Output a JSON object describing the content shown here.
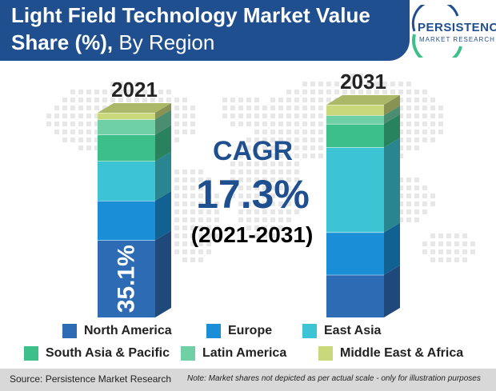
{
  "header": {
    "title_bold": "Light Field Technology Market Value",
    "title_bold_2": "Share (%),",
    "title_regular": " By Region"
  },
  "logo": {
    "name": "PERSISTENCE",
    "tagline": "MARKET RESEARCH"
  },
  "cagr": {
    "label": "CAGR",
    "value": "17.3%",
    "period": "(2021-2031)"
  },
  "footer": {
    "source": "Source: Persistence Market Research",
    "note": "Note: Market shares not depicted as per actual scale - only for illustration purposes"
  },
  "colors": {
    "header": "#1f4f8f",
    "north_america": "#2d6bb5",
    "europe": "#1a8fd8",
    "east_asia": "#3cc3d4",
    "south_asia_pacific": "#3dbf8a",
    "latin_america": "#6fcfa5",
    "middle_east_africa": "#c8d87a"
  },
  "chart_data": {
    "type": "bar",
    "stacked": true,
    "categories": [
      "2021",
      "2031"
    ],
    "series": [
      {
        "name": "North America",
        "values": [
          35.1,
          20.0
        ]
      },
      {
        "name": "Europe",
        "values": [
          18.0,
          20.0
        ]
      },
      {
        "name": "East Asia",
        "values": [
          18.0,
          40.0
        ]
      },
      {
        "name": "South Asia & Pacific",
        "values": [
          12.0,
          11.0
        ]
      },
      {
        "name": "Latin America",
        "values": [
          7.0,
          4.0
        ]
      },
      {
        "name": "Middle East & Africa",
        "values": [
          3.0,
          5.0
        ]
      }
    ],
    "data_labels": [
      {
        "category": "2021",
        "series": "North America",
        "text": "35.1%"
      }
    ],
    "note": "Not to scale; segment heights illustrative",
    "legend": "bottom",
    "grid": false
  }
}
